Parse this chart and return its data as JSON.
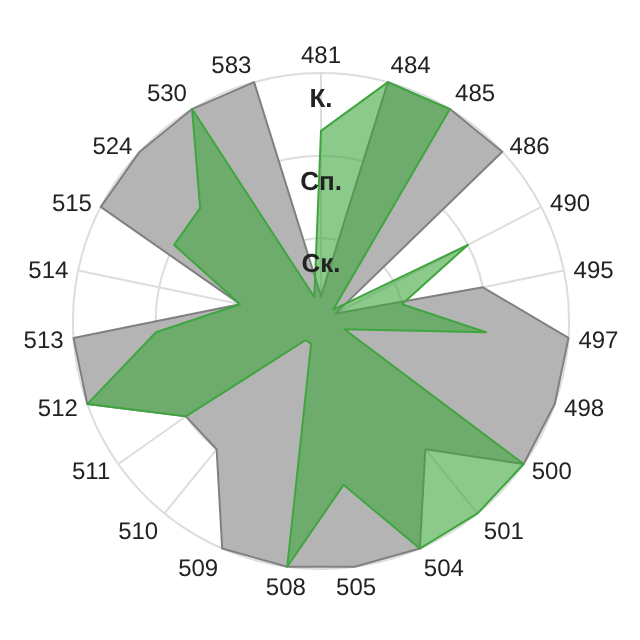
{
  "chart_data": {
    "type": "radar",
    "categories": [
      "481",
      "484",
      "485",
      "486",
      "490",
      "495",
      "497",
      "498",
      "500",
      "501",
      "504",
      "505",
      "508",
      "509",
      "510",
      "511",
      "512",
      "513",
      "514",
      "515",
      "524",
      "530",
      "583"
    ],
    "series": [
      {
        "color": "#b4b4b4",
        "values": [
          0.3,
          3,
          3,
          3,
          0.2,
          2,
          3,
          3,
          3,
          2,
          3,
          3,
          3,
          3,
          2,
          2,
          3,
          3,
          1,
          3,
          3,
          3,
          3
        ]
      },
      {
        "color": "#3fa63f",
        "values": [
          2.3,
          3,
          3,
          0.2,
          2,
          1,
          2,
          0.3,
          3,
          3,
          3,
          2,
          3,
          0.3,
          0.3,
          2,
          3,
          2,
          1,
          2,
          2,
          3,
          0.3
        ]
      }
    ],
    "ylim": [
      0,
      3
    ],
    "yticks": [
      {
        "value": 1,
        "label": "Ск."
      },
      {
        "value": 2,
        "label": "Сп."
      },
      {
        "value": 3,
        "label": "К."
      }
    ],
    "grid": true
  }
}
